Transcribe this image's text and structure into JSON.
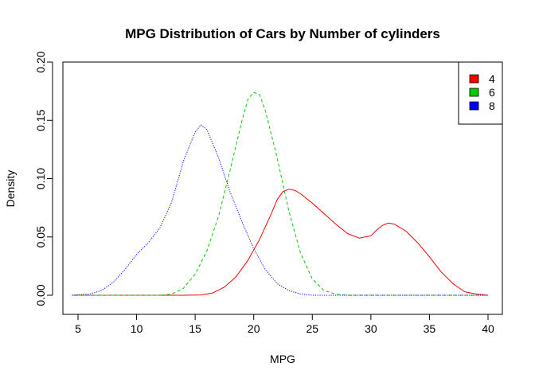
{
  "chart_data": {
    "type": "line",
    "title": "MPG Distribution of Cars by Number of cylinders",
    "xlabel": "MPG",
    "ylabel": "Density",
    "xlim": [
      4.5,
      40
    ],
    "ylim": [
      0,
      0.2
    ],
    "x_ticks": [
      5,
      10,
      15,
      20,
      25,
      30,
      35,
      40
    ],
    "y_ticks": [
      0.0,
      0.05,
      0.1,
      0.15,
      0.2
    ],
    "x_tick_labels": [
      "5",
      "10",
      "15",
      "20",
      "25",
      "30",
      "35",
      "40"
    ],
    "y_tick_labels": [
      "0.00",
      "0.05",
      "0.10",
      "0.15",
      "0.20"
    ],
    "grid": false,
    "legend": {
      "position": "top-right",
      "entries": [
        {
          "label": "4",
          "color": "#ff0000"
        },
        {
          "label": "6",
          "color": "#00cd00"
        },
        {
          "label": "8",
          "color": "#0000ff"
        }
      ]
    },
    "series": [
      {
        "name": "4",
        "color": "#ff0000",
        "line_style": "solid",
        "points": [
          [
            4.5,
            0
          ],
          [
            10,
            0
          ],
          [
            14,
            0
          ],
          [
            15.5,
            0.0003
          ],
          [
            16.5,
            0.002
          ],
          [
            17.5,
            0.007
          ],
          [
            18.5,
            0.016
          ],
          [
            19.5,
            0.03
          ],
          [
            20.5,
            0.048
          ],
          [
            21.5,
            0.07
          ],
          [
            22,
            0.082
          ],
          [
            22.5,
            0.089
          ],
          [
            23,
            0.091
          ],
          [
            23.5,
            0.09
          ],
          [
            24,
            0.087
          ],
          [
            25,
            0.079
          ],
          [
            26,
            0.07
          ],
          [
            27,
            0.061
          ],
          [
            28,
            0.053
          ],
          [
            29,
            0.049
          ],
          [
            30,
            0.051
          ],
          [
            30.5,
            0.056
          ],
          [
            31,
            0.06
          ],
          [
            31.5,
            0.062
          ],
          [
            32,
            0.061
          ],
          [
            33,
            0.055
          ],
          [
            34,
            0.045
          ],
          [
            35,
            0.033
          ],
          [
            36,
            0.02
          ],
          [
            37,
            0.01
          ],
          [
            38,
            0.003
          ],
          [
            39,
            0.001
          ],
          [
            40,
            0
          ]
        ]
      },
      {
        "name": "6",
        "color": "#00cd00",
        "line_style": "dashed",
        "points": [
          [
            4.5,
            0
          ],
          [
            10,
            0
          ],
          [
            12,
            0
          ],
          [
            13,
            0.001
          ],
          [
            14,
            0.006
          ],
          [
            15,
            0.018
          ],
          [
            16,
            0.038
          ],
          [
            17,
            0.068
          ],
          [
            18,
            0.108
          ],
          [
            19,
            0.15
          ],
          [
            19.5,
            0.168
          ],
          [
            20,
            0.174
          ],
          [
            20.5,
            0.172
          ],
          [
            21,
            0.158
          ],
          [
            22,
            0.118
          ],
          [
            23,
            0.072
          ],
          [
            24,
            0.036
          ],
          [
            25,
            0.014
          ],
          [
            26,
            0.004
          ],
          [
            27,
            0.001
          ],
          [
            28,
            0
          ],
          [
            40,
            0
          ]
        ]
      },
      {
        "name": "8",
        "color": "#0000ff",
        "line_style": "dotted",
        "points": [
          [
            4.5,
            0
          ],
          [
            6,
            0.001
          ],
          [
            7,
            0.004
          ],
          [
            8,
            0.011
          ],
          [
            9,
            0.022
          ],
          [
            10,
            0.035
          ],
          [
            11,
            0.045
          ],
          [
            12,
            0.058
          ],
          [
            13,
            0.08
          ],
          [
            14,
            0.115
          ],
          [
            15,
            0.14
          ],
          [
            15.5,
            0.146
          ],
          [
            16,
            0.142
          ],
          [
            17,
            0.118
          ],
          [
            18,
            0.088
          ],
          [
            19,
            0.063
          ],
          [
            20,
            0.04
          ],
          [
            21,
            0.022
          ],
          [
            22,
            0.01
          ],
          [
            23,
            0.004
          ],
          [
            24,
            0.001
          ],
          [
            25,
            0
          ],
          [
            40,
            0
          ]
        ]
      }
    ]
  }
}
